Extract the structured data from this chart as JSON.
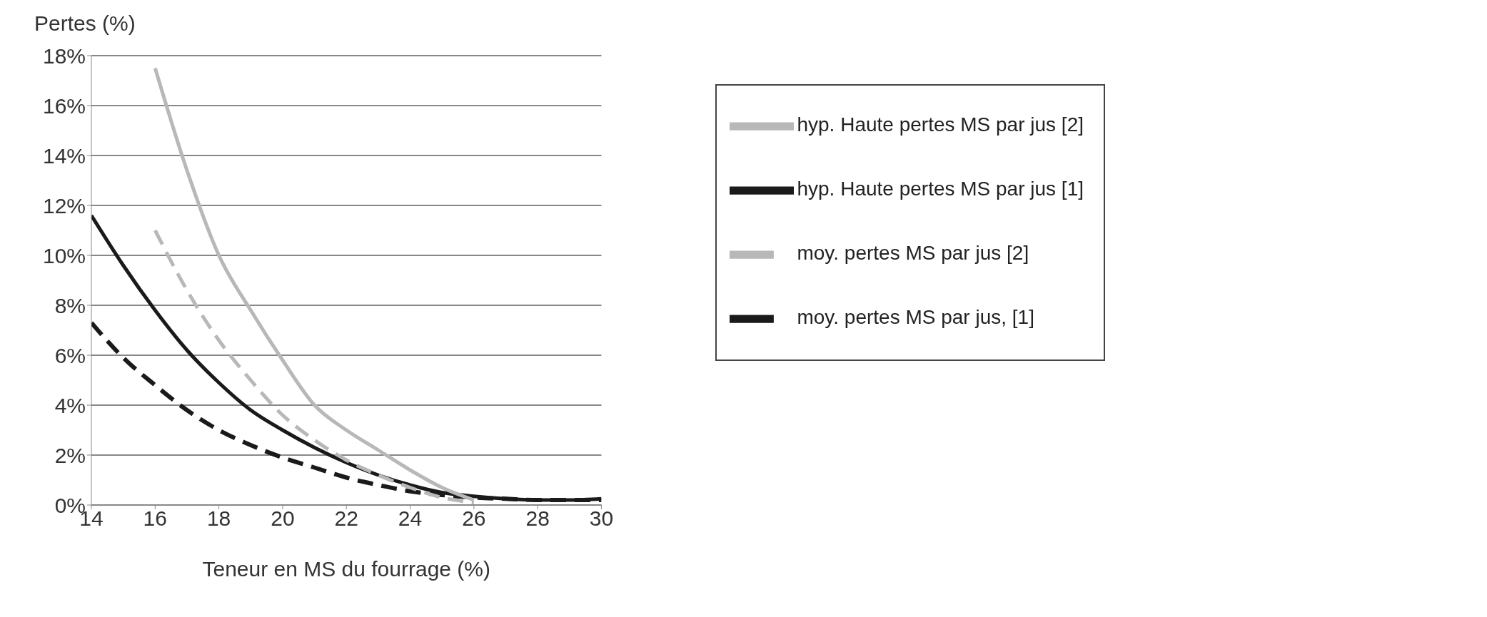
{
  "chart_data": {
    "type": "line",
    "xlabel": "Teneur en MS du fourrage (%)",
    "ylabel": "Pertes (%)",
    "x": [
      14,
      15,
      16,
      17,
      18,
      19,
      20,
      21,
      22,
      23,
      24,
      25,
      26,
      27,
      28,
      29,
      30
    ],
    "xlim": [
      14,
      30
    ],
    "xticks": [
      14,
      16,
      18,
      20,
      22,
      24,
      26,
      28,
      30
    ],
    "ylim": [
      0,
      18
    ],
    "yticks": [
      {
        "value": 0,
        "label": "0%"
      },
      {
        "value": 2,
        "label": "2%"
      },
      {
        "value": 4,
        "label": "4%"
      },
      {
        "value": 6,
        "label": "6%"
      },
      {
        "value": 8,
        "label": "8%"
      },
      {
        "value": 10,
        "label": "10%"
      },
      {
        "value": 12,
        "label": "12%"
      },
      {
        "value": 14,
        "label": "14%"
      },
      {
        "value": 16,
        "label": "16%"
      },
      {
        "value": 18,
        "label": "18%"
      }
    ],
    "grid": "y",
    "legend": "top right",
    "marker": "none",
    "series": [
      {
        "name": "moy. pertes MS par jus, [1]",
        "color": "#1a1a1a",
        "line_style": "dashed",
        "values": [
          7.3,
          5.9,
          4.8,
          3.8,
          3.0,
          2.4,
          1.9,
          1.5,
          1.1,
          0.8,
          0.55,
          0.4,
          0.3,
          0.25,
          0.2,
          0.2,
          0.2
        ]
      },
      {
        "name": "hyp. Haute pertes MS par jus [1]",
        "color": "#1a1a1a",
        "line_style": "solid",
        "values": [
          11.6,
          9.6,
          7.8,
          6.2,
          4.9,
          3.8,
          3.0,
          2.3,
          1.7,
          1.2,
          0.8,
          0.5,
          0.35,
          0.25,
          0.2,
          0.2,
          0.25
        ]
      },
      {
        "name": "moy. pertes MS par jus [2]",
        "color": "#b8b8b8",
        "line_style": "dashed",
        "values": [
          null,
          null,
          11.0,
          8.6,
          6.6,
          5.0,
          3.6,
          2.6,
          1.8,
          1.2,
          0.7,
          0.3,
          0.1,
          null,
          null,
          null,
          null
        ]
      },
      {
        "name": "hyp. Haute  pertes MS par jus [2]",
        "color": "#b8b8b8",
        "line_style": "solid",
        "values": [
          null,
          null,
          17.5,
          13.4,
          10.0,
          7.8,
          5.8,
          4.0,
          3.0,
          2.2,
          1.4,
          0.7,
          0.2,
          null,
          null,
          null,
          null
        ]
      }
    ]
  }
}
